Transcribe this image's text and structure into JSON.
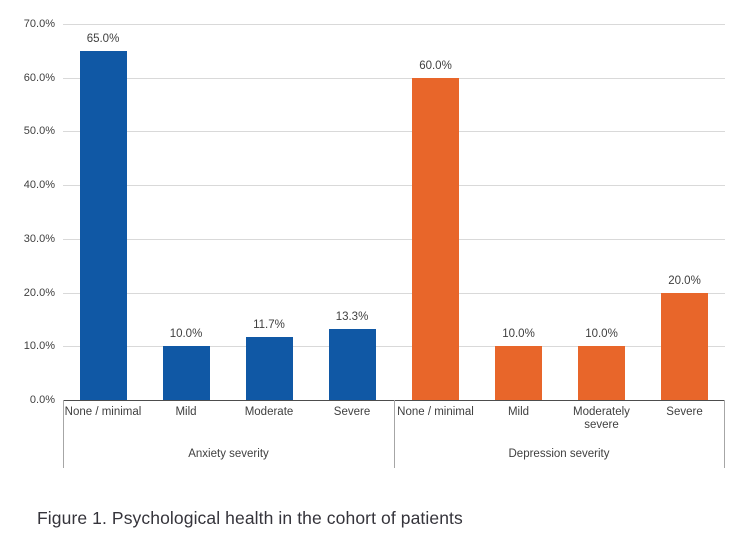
{
  "figure": {
    "caption": "Figure 1. Psychological health in the cohort of patients"
  },
  "chart_data": {
    "type": "bar",
    "title": "",
    "xlabel": "",
    "ylabel": "",
    "ylim": [
      0,
      70
    ],
    "ytick_step": 10,
    "grid": "horizontal",
    "legend": "none",
    "yticks": [
      {
        "value": 0,
        "label": "0.0%"
      },
      {
        "value": 10,
        "label": "10.0%"
      },
      {
        "value": 20,
        "label": "20.0%"
      },
      {
        "value": 30,
        "label": "30.0%"
      },
      {
        "value": 40,
        "label": "40.0%"
      },
      {
        "value": 50,
        "label": "50.0%"
      },
      {
        "value": 60,
        "label": "60.0%"
      },
      {
        "value": 70,
        "label": "70.0%"
      }
    ],
    "groups": [
      {
        "label": "Anxiety severity",
        "color": "#1058a5",
        "bars": [
          {
            "category": "None / minimal",
            "value": 65.0,
            "data_label": "65.0%"
          },
          {
            "category": "Mild",
            "value": 10.0,
            "data_label": "10.0%"
          },
          {
            "category": "Moderate",
            "value": 11.7,
            "data_label": "11.7%"
          },
          {
            "category": "Severe",
            "value": 13.3,
            "data_label": "13.3%"
          }
        ]
      },
      {
        "label": "Depression severity",
        "color": "#e8662a",
        "bars": [
          {
            "category": "None / minimal",
            "value": 60.0,
            "data_label": "60.0%"
          },
          {
            "category": "Mild",
            "value": 10.0,
            "data_label": "10.0%"
          },
          {
            "category": "Moderately severe",
            "value": 10.0,
            "data_label": "10.0%"
          },
          {
            "category": "Severe",
            "value": 20.0,
            "data_label": "20.0%"
          }
        ]
      }
    ]
  }
}
